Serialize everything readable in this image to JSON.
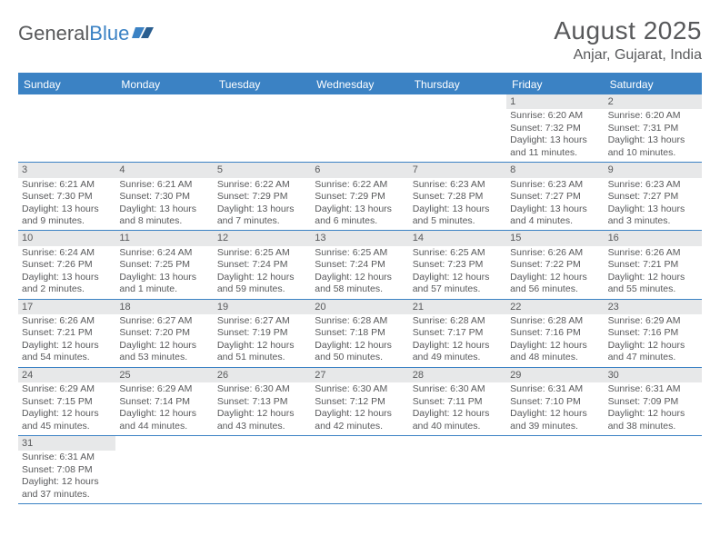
{
  "brand": {
    "part1": "General",
    "part2": "Blue"
  },
  "title": "August 2025",
  "location": "Anjar, Gujarat, India",
  "colors": {
    "header_bg": "#3b82c4",
    "text": "#58595b",
    "daynum_bg": "#e7e8e9",
    "row_border": "#3b82c4",
    "page_bg": "#ffffff"
  },
  "dow": [
    "Sunday",
    "Monday",
    "Tuesday",
    "Wednesday",
    "Thursday",
    "Friday",
    "Saturday"
  ],
  "weeks": [
    [
      {
        "n": "",
        "lines": []
      },
      {
        "n": "",
        "lines": []
      },
      {
        "n": "",
        "lines": []
      },
      {
        "n": "",
        "lines": []
      },
      {
        "n": "",
        "lines": []
      },
      {
        "n": "1",
        "lines": [
          "Sunrise: 6:20 AM",
          "Sunset: 7:32 PM",
          "Daylight: 13 hours and 11 minutes."
        ]
      },
      {
        "n": "2",
        "lines": [
          "Sunrise: 6:20 AM",
          "Sunset: 7:31 PM",
          "Daylight: 13 hours and 10 minutes."
        ]
      }
    ],
    [
      {
        "n": "3",
        "lines": [
          "Sunrise: 6:21 AM",
          "Sunset: 7:30 PM",
          "Daylight: 13 hours and 9 minutes."
        ]
      },
      {
        "n": "4",
        "lines": [
          "Sunrise: 6:21 AM",
          "Sunset: 7:30 PM",
          "Daylight: 13 hours and 8 minutes."
        ]
      },
      {
        "n": "5",
        "lines": [
          "Sunrise: 6:22 AM",
          "Sunset: 7:29 PM",
          "Daylight: 13 hours and 7 minutes."
        ]
      },
      {
        "n": "6",
        "lines": [
          "Sunrise: 6:22 AM",
          "Sunset: 7:29 PM",
          "Daylight: 13 hours and 6 minutes."
        ]
      },
      {
        "n": "7",
        "lines": [
          "Sunrise: 6:23 AM",
          "Sunset: 7:28 PM",
          "Daylight: 13 hours and 5 minutes."
        ]
      },
      {
        "n": "8",
        "lines": [
          "Sunrise: 6:23 AM",
          "Sunset: 7:27 PM",
          "Daylight: 13 hours and 4 minutes."
        ]
      },
      {
        "n": "9",
        "lines": [
          "Sunrise: 6:23 AM",
          "Sunset: 7:27 PM",
          "Daylight: 13 hours and 3 minutes."
        ]
      }
    ],
    [
      {
        "n": "10",
        "lines": [
          "Sunrise: 6:24 AM",
          "Sunset: 7:26 PM",
          "Daylight: 13 hours and 2 minutes."
        ]
      },
      {
        "n": "11",
        "lines": [
          "Sunrise: 6:24 AM",
          "Sunset: 7:25 PM",
          "Daylight: 13 hours and 1 minute."
        ]
      },
      {
        "n": "12",
        "lines": [
          "Sunrise: 6:25 AM",
          "Sunset: 7:24 PM",
          "Daylight: 12 hours and 59 minutes."
        ]
      },
      {
        "n": "13",
        "lines": [
          "Sunrise: 6:25 AM",
          "Sunset: 7:24 PM",
          "Daylight: 12 hours and 58 minutes."
        ]
      },
      {
        "n": "14",
        "lines": [
          "Sunrise: 6:25 AM",
          "Sunset: 7:23 PM",
          "Daylight: 12 hours and 57 minutes."
        ]
      },
      {
        "n": "15",
        "lines": [
          "Sunrise: 6:26 AM",
          "Sunset: 7:22 PM",
          "Daylight: 12 hours and 56 minutes."
        ]
      },
      {
        "n": "16",
        "lines": [
          "Sunrise: 6:26 AM",
          "Sunset: 7:21 PM",
          "Daylight: 12 hours and 55 minutes."
        ]
      }
    ],
    [
      {
        "n": "17",
        "lines": [
          "Sunrise: 6:26 AM",
          "Sunset: 7:21 PM",
          "Daylight: 12 hours and 54 minutes."
        ]
      },
      {
        "n": "18",
        "lines": [
          "Sunrise: 6:27 AM",
          "Sunset: 7:20 PM",
          "Daylight: 12 hours and 53 minutes."
        ]
      },
      {
        "n": "19",
        "lines": [
          "Sunrise: 6:27 AM",
          "Sunset: 7:19 PM",
          "Daylight: 12 hours and 51 minutes."
        ]
      },
      {
        "n": "20",
        "lines": [
          "Sunrise: 6:28 AM",
          "Sunset: 7:18 PM",
          "Daylight: 12 hours and 50 minutes."
        ]
      },
      {
        "n": "21",
        "lines": [
          "Sunrise: 6:28 AM",
          "Sunset: 7:17 PM",
          "Daylight: 12 hours and 49 minutes."
        ]
      },
      {
        "n": "22",
        "lines": [
          "Sunrise: 6:28 AM",
          "Sunset: 7:16 PM",
          "Daylight: 12 hours and 48 minutes."
        ]
      },
      {
        "n": "23",
        "lines": [
          "Sunrise: 6:29 AM",
          "Sunset: 7:16 PM",
          "Daylight: 12 hours and 47 minutes."
        ]
      }
    ],
    [
      {
        "n": "24",
        "lines": [
          "Sunrise: 6:29 AM",
          "Sunset: 7:15 PM",
          "Daylight: 12 hours and 45 minutes."
        ]
      },
      {
        "n": "25",
        "lines": [
          "Sunrise: 6:29 AM",
          "Sunset: 7:14 PM",
          "Daylight: 12 hours and 44 minutes."
        ]
      },
      {
        "n": "26",
        "lines": [
          "Sunrise: 6:30 AM",
          "Sunset: 7:13 PM",
          "Daylight: 12 hours and 43 minutes."
        ]
      },
      {
        "n": "27",
        "lines": [
          "Sunrise: 6:30 AM",
          "Sunset: 7:12 PM",
          "Daylight: 12 hours and 42 minutes."
        ]
      },
      {
        "n": "28",
        "lines": [
          "Sunrise: 6:30 AM",
          "Sunset: 7:11 PM",
          "Daylight: 12 hours and 40 minutes."
        ]
      },
      {
        "n": "29",
        "lines": [
          "Sunrise: 6:31 AM",
          "Sunset: 7:10 PM",
          "Daylight: 12 hours and 39 minutes."
        ]
      },
      {
        "n": "30",
        "lines": [
          "Sunrise: 6:31 AM",
          "Sunset: 7:09 PM",
          "Daylight: 12 hours and 38 minutes."
        ]
      }
    ],
    [
      {
        "n": "31",
        "lines": [
          "Sunrise: 6:31 AM",
          "Sunset: 7:08 PM",
          "Daylight: 12 hours and 37 minutes."
        ]
      },
      {
        "n": "",
        "lines": []
      },
      {
        "n": "",
        "lines": []
      },
      {
        "n": "",
        "lines": []
      },
      {
        "n": "",
        "lines": []
      },
      {
        "n": "",
        "lines": []
      },
      {
        "n": "",
        "lines": []
      }
    ]
  ]
}
